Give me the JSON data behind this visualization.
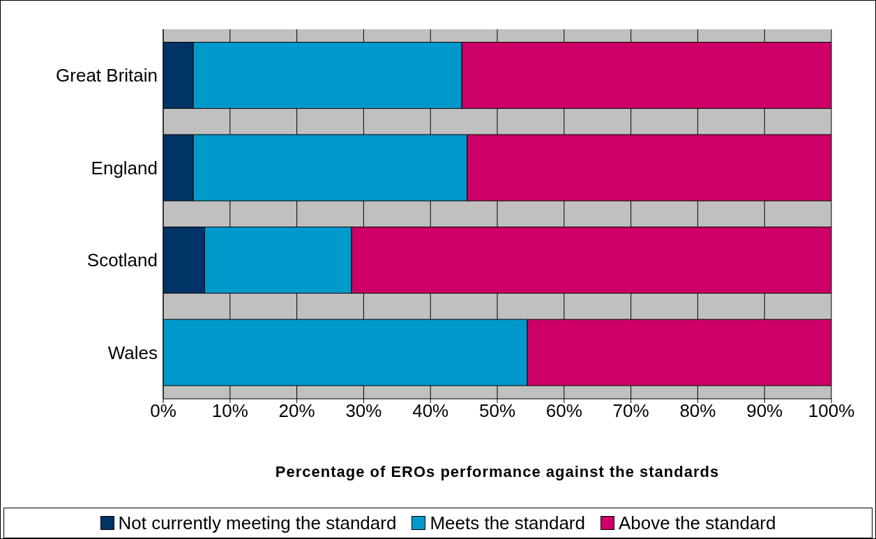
{
  "chart_data": {
    "type": "bar",
    "orientation": "horizontal",
    "stacked": true,
    "categories": [
      "Great Britain",
      "England",
      "Scotland",
      "Wales"
    ],
    "series": [
      {
        "name": "Not currently meeting the standard",
        "color": "#003366",
        "values": [
          4.5,
          4.5,
          6.2,
          0
        ]
      },
      {
        "name": "Meets the standard",
        "color": "#0099cc",
        "values": [
          40.2,
          41.0,
          22.0,
          54.5
        ]
      },
      {
        "name": "Above the standard",
        "color": "#cc0066",
        "values": [
          55.3,
          54.5,
          71.8,
          45.5
        ]
      }
    ],
    "xlabel": "Percentage of EROs performance against the standards",
    "xlim": [
      0,
      100
    ],
    "xticks": [
      {
        "value": 0,
        "label": "0%"
      },
      {
        "value": 10,
        "label": "10%"
      },
      {
        "value": 20,
        "label": "20%"
      },
      {
        "value": 30,
        "label": "30%"
      },
      {
        "value": 40,
        "label": "40%"
      },
      {
        "value": 50,
        "label": "50%"
      },
      {
        "value": 60,
        "label": "60%"
      },
      {
        "value": 70,
        "label": "70%"
      },
      {
        "value": 80,
        "label": "80%"
      },
      {
        "value": 90,
        "label": "90%"
      },
      {
        "value": 100,
        "label": "100%"
      }
    ],
    "grid": "x",
    "legend": "bottom"
  }
}
